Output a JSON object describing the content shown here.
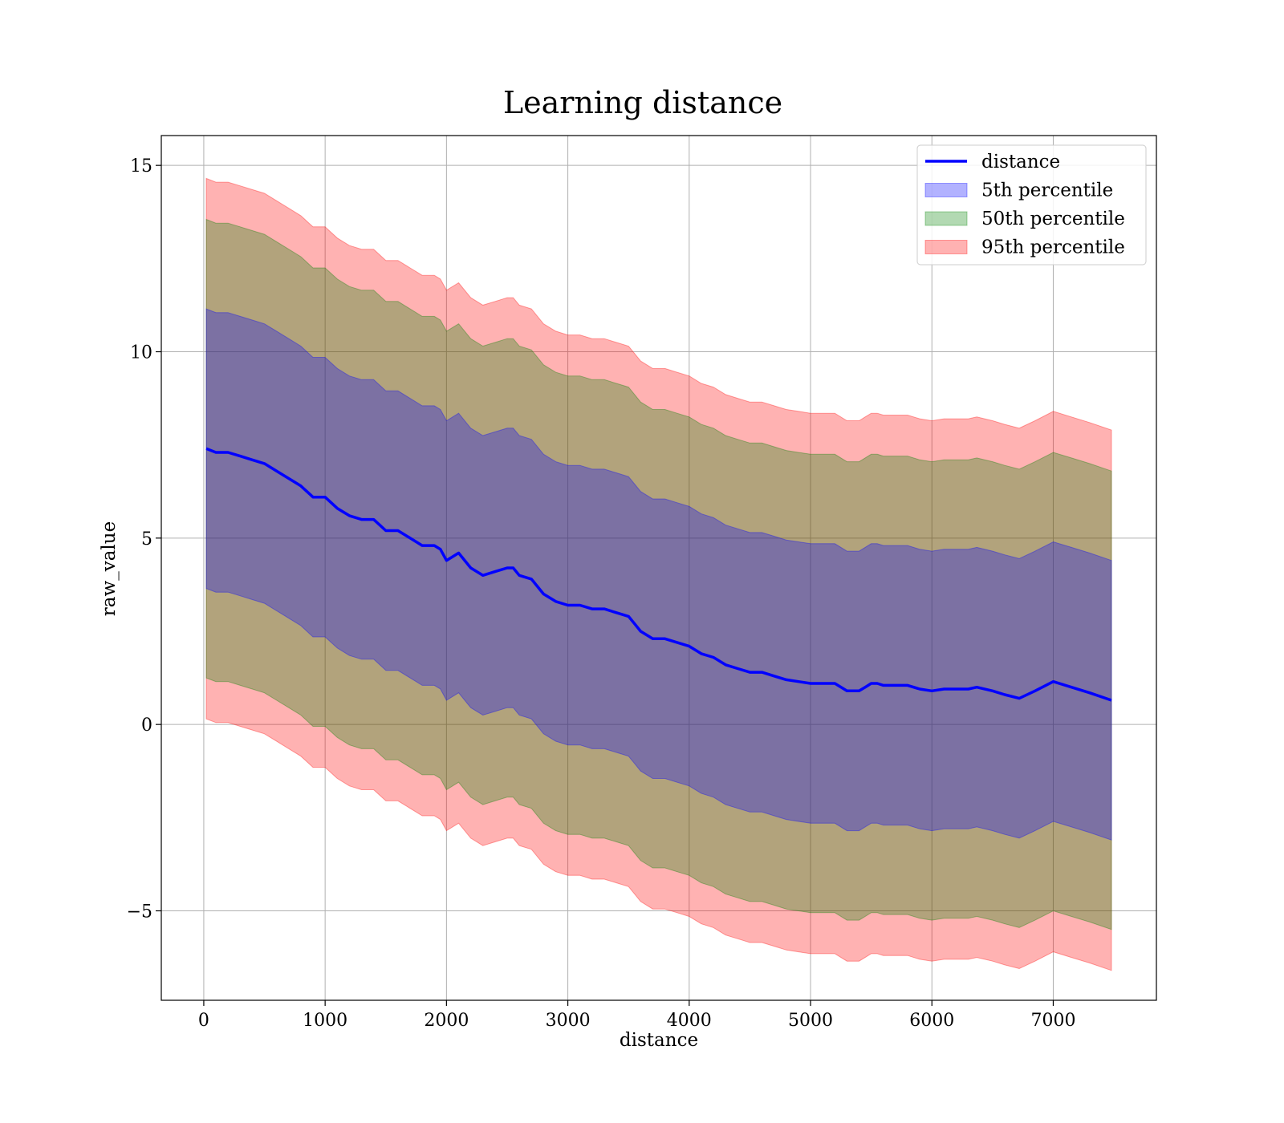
{
  "chart_data": {
    "type": "area",
    "title": "Learning distance",
    "xlabel": "distance",
    "ylabel": "raw_value",
    "xlim": [
      -350,
      7850
    ],
    "ylim": [
      -7.4,
      15.8
    ],
    "xticks": [
      0,
      1000,
      2000,
      3000,
      4000,
      5000,
      6000,
      7000
    ],
    "yticks": [
      -5,
      0,
      5,
      10,
      15
    ],
    "xtick_labels": [
      "0",
      "1000",
      "2000",
      "3000",
      "4000",
      "5000",
      "6000",
      "7000"
    ],
    "ytick_labels": [
      "−5",
      "0",
      "5",
      "10",
      "15"
    ],
    "grid": true,
    "legend_position": "top-right",
    "x": [
      20,
      100,
      200,
      300,
      400,
      500,
      600,
      700,
      800,
      900,
      1000,
      1100,
      1200,
      1300,
      1400,
      1500,
      1600,
      1700,
      1800,
      1900,
      1950,
      2000,
      2100,
      2200,
      2300,
      2400,
      2500,
      2550,
      2600,
      2700,
      2800,
      2900,
      3000,
      3100,
      3200,
      3300,
      3400,
      3500,
      3550,
      3600,
      3700,
      3800,
      3900,
      4000,
      4100,
      4200,
      4300,
      4400,
      4500,
      4600,
      4700,
      4800,
      4900,
      5000,
      5100,
      5200,
      5300,
      5400,
      5450,
      5500,
      5550,
      5600,
      5700,
      5800,
      5900,
      6000,
      6100,
      6200,
      6300,
      6370,
      6500,
      6600,
      6720,
      6850,
      7000,
      7150,
      7300,
      7480
    ],
    "series": [
      {
        "name": "distance",
        "kind": "line",
        "color": "#0000ff",
        "values": [
          7.4,
          7.3,
          7.3,
          7.2,
          7.1,
          7.0,
          6.8,
          6.6,
          6.4,
          6.1,
          6.1,
          5.8,
          5.6,
          5.5,
          5.5,
          5.2,
          5.2,
          5.0,
          4.8,
          4.8,
          4.7,
          4.4,
          4.6,
          4.2,
          4.0,
          4.1,
          4.2,
          4.2,
          4.0,
          3.9,
          3.5,
          3.3,
          3.2,
          3.2,
          3.1,
          3.1,
          3.0,
          2.9,
          2.7,
          2.5,
          2.3,
          2.3,
          2.2,
          2.1,
          1.9,
          1.8,
          1.6,
          1.5,
          1.4,
          1.4,
          1.3,
          1.2,
          1.15,
          1.1,
          1.1,
          1.1,
          0.9,
          0.9,
          1.0,
          1.1,
          1.1,
          1.05,
          1.05,
          1.05,
          0.95,
          0.9,
          0.95,
          0.95,
          0.95,
          1.0,
          0.9,
          0.8,
          0.7,
          0.9,
          1.15,
          1.0,
          0.85,
          0.65
        ]
      },
      {
        "name": "5th percentile",
        "kind": "band",
        "color": "#0000ff",
        "halfwidth": 3.75
      },
      {
        "name": "50th percentile",
        "kind": "band",
        "color": "#008000",
        "halfwidth": 6.15
      },
      {
        "name": "95th percentile",
        "kind": "band",
        "color": "#ff0000",
        "halfwidth": 7.25
      }
    ]
  }
}
